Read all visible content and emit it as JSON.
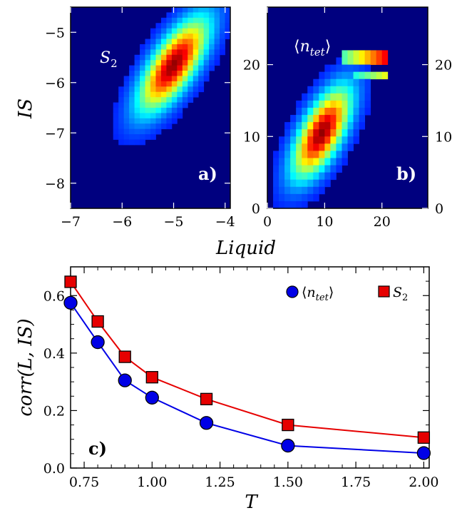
{
  "chart_data": [
    {
      "type": "heatmap",
      "panel_label": "a)",
      "annotation": "S2",
      "xlim": [
        -7.0,
        -3.9
      ],
      "ylim": [
        -8.5,
        -4.5
      ],
      "xticks": [
        "−7",
        "−6",
        "−5",
        "−4"
      ],
      "xtick_values": [
        -7,
        -6,
        -5,
        -4
      ],
      "yticks": [
        "−5",
        "−6",
        "−7",
        "−8"
      ],
      "ytick_values": [
        -5,
        -6,
        -7,
        -8
      ],
      "ylabel": "IS",
      "grid": false,
      "distribution": {
        "center": [
          -5.0,
          -5.65
        ],
        "sigma": [
          0.45,
          0.62
        ],
        "rho": 0.72
      }
    },
    {
      "type": "heatmap",
      "panel_label": "b)",
      "annotation": "⟨n_tet⟩",
      "xlim": [
        0,
        28
      ],
      "ylim": [
        0,
        28
      ],
      "xticks": [
        "0",
        "10",
        "20"
      ],
      "xtick_values": [
        0,
        10,
        20
      ],
      "yticks": [
        "0",
        "10",
        "20"
      ],
      "ytick_values": [
        0,
        10,
        20
      ],
      "grid": false,
      "distribution": {
        "center": [
          9.5,
          10.5
        ],
        "sigma": [
          3.4,
          4.2
        ],
        "rho": 0.66
      }
    },
    {
      "type": "line",
      "panel_label": "c)",
      "x": [
        0.7,
        0.8,
        0.9,
        1.0,
        1.2,
        1.5,
        2.0
      ],
      "series": [
        {
          "name": "⟨n_tet⟩",
          "values": [
            0.575,
            0.438,
            0.305,
            0.245,
            0.157,
            0.078,
            0.052
          ],
          "color": "#0000e6",
          "marker": "circle"
        },
        {
          "name": "S2",
          "values": [
            0.648,
            0.51,
            0.387,
            0.316,
            0.24,
            0.15,
            0.106
          ],
          "color": "#e60000",
          "marker": "square"
        }
      ],
      "xlabel": "T",
      "ylabel": "corr(L, IS)",
      "xlim": [
        0.7,
        2.02
      ],
      "ylim": [
        0.0,
        0.7
      ],
      "xticks": [
        "0.75",
        "1.00",
        "1.25",
        "1.50",
        "1.75",
        "2.00"
      ],
      "xtick_values": [
        0.75,
        1.0,
        1.25,
        1.5,
        1.75,
        2.0
      ],
      "yticks": [
        "0.0",
        "0.2",
        "0.4",
        "0.6"
      ],
      "ytick_values": [
        0.0,
        0.2,
        0.4,
        0.6
      ],
      "legend_position": "top-right",
      "grid": false
    }
  ],
  "shared_xlabel_top": "Liquid",
  "colors": {
    "heatmap_background": "#00007f",
    "blue": "#0000e6",
    "red": "#e60000"
  }
}
